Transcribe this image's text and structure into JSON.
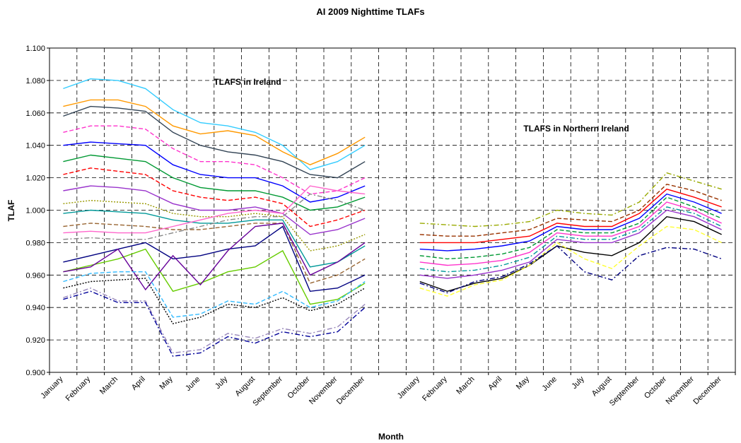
{
  "chart_data": {
    "type": "line",
    "title": "AI 2009 Nighttime TLAFs",
    "x_label": "Month",
    "y_label": "TLAF",
    "annotations": [
      "TLAFS in Ireland",
      "TLAFS in Northern Ireland"
    ],
    "categories": [
      "January",
      "February",
      "March",
      "April",
      "May",
      "June",
      "July",
      "August",
      "September",
      "October",
      "November",
      "December",
      null,
      "January",
      "February",
      "March",
      "April",
      "May",
      "June",
      "July",
      "August",
      "September",
      "October",
      "November",
      "December"
    ],
    "ylim": [
      0.9,
      1.1
    ],
    "yticks": [
      {
        "value": 0.9,
        "label": "0.900"
      },
      {
        "value": 0.92,
        "label": "0.920"
      },
      {
        "value": 0.94,
        "label": "0.940"
      },
      {
        "value": 0.96,
        "label": "0.960"
      },
      {
        "value": 0.98,
        "label": "0.980"
      },
      {
        "value": 1.0,
        "label": "1.000"
      },
      {
        "value": 1.02,
        "label": "1.020"
      },
      {
        "value": 1.04,
        "label": "1.040"
      },
      {
        "value": 1.06,
        "label": "1.060"
      },
      {
        "value": 1.08,
        "label": "1.080"
      },
      {
        "value": 1.1,
        "label": "1.100"
      }
    ],
    "grid": true,
    "series": [
      {
        "color": "#33ccff",
        "dash": "solid",
        "values": [
          1.075,
          1.081,
          1.08,
          1.075,
          1.062,
          1.054,
          1.052,
          1.048,
          1.04,
          1.025,
          1.03,
          1.04,
          null,
          null,
          null,
          null,
          null,
          null,
          null,
          null,
          null,
          null,
          null,
          null,
          null
        ]
      },
      {
        "color": "#ff9900",
        "dash": "solid",
        "values": [
          1.064,
          1.068,
          1.068,
          1.064,
          1.052,
          1.047,
          1.049,
          1.046,
          1.036,
          1.028,
          1.035,
          1.045,
          null,
          null,
          null,
          null,
          null,
          null,
          null,
          null,
          null,
          null,
          null,
          null,
          null
        ]
      },
      {
        "color": "#334455",
        "dash": "solid",
        "values": [
          1.058,
          1.064,
          1.063,
          1.061,
          1.048,
          1.04,
          1.036,
          1.034,
          1.03,
          1.022,
          1.02,
          1.03,
          null,
          null,
          null,
          null,
          null,
          null,
          null,
          null,
          null,
          null,
          null,
          null,
          null
        ]
      },
      {
        "color": "#ff33cc",
        "dash": "dash",
        "values": [
          1.048,
          1.052,
          1.052,
          1.05,
          1.038,
          1.03,
          1.03,
          1.028,
          1.02,
          1.01,
          1.012,
          1.02,
          null,
          null,
          null,
          null,
          null,
          null,
          null,
          null,
          null,
          null,
          null,
          null,
          null
        ]
      },
      {
        "color": "#0000ff",
        "dash": "solid",
        "values": [
          1.04,
          1.042,
          1.041,
          1.04,
          1.028,
          1.022,
          1.02,
          1.02,
          1.015,
          1.005,
          1.008,
          1.015,
          null,
          null,
          null,
          null,
          null,
          null,
          null,
          null,
          null,
          null,
          null,
          null,
          null
        ]
      },
      {
        "color": "#009933",
        "dash": "solid",
        "values": [
          1.03,
          1.034,
          1.032,
          1.03,
          1.02,
          1.014,
          1.012,
          1.012,
          1.008,
          1.0,
          1.002,
          1.008,
          null,
          null,
          null,
          null,
          null,
          null,
          null,
          null,
          null,
          null,
          null,
          null,
          null
        ]
      },
      {
        "color": "#ff0000",
        "dash": "dash",
        "values": [
          1.022,
          1.026,
          1.024,
          1.022,
          1.012,
          1.008,
          1.006,
          1.008,
          1.004,
          0.99,
          0.994,
          1.0,
          null,
          null,
          null,
          null,
          null,
          null,
          null,
          null,
          null,
          null,
          null,
          null,
          null
        ]
      },
      {
        "color": "#9933cc",
        "dash": "solid",
        "values": [
          1.012,
          1.015,
          1.014,
          1.012,
          1.004,
          1.0,
          1.0,
          1.002,
          0.998,
          0.985,
          0.988,
          0.995,
          null,
          null,
          null,
          null,
          null,
          null,
          null,
          null,
          null,
          null,
          null,
          null,
          null
        ]
      },
      {
        "color": "#999900",
        "dash": "dot",
        "values": [
          1.004,
          1.006,
          1.005,
          1.004,
          0.998,
          0.996,
          0.996,
          0.998,
          0.996,
          0.975,
          0.978,
          0.985,
          null,
          null,
          null,
          null,
          null,
          null,
          null,
          null,
          null,
          null,
          null,
          null,
          null
        ]
      },
      {
        "color": "#009999",
        "dash": "solid",
        "values": [
          0.998,
          1.0,
          0.999,
          0.998,
          0.994,
          0.992,
          0.992,
          0.994,
          0.994,
          0.965,
          0.968,
          0.978,
          null,
          null,
          null,
          null,
          null,
          null,
          null,
          null,
          null,
          null,
          null,
          null,
          null
        ]
      },
      {
        "color": "#996633",
        "dash": "dash",
        "values": [
          0.99,
          0.992,
          0.991,
          0.99,
          0.988,
          0.988,
          0.99,
          0.992,
          0.992,
          0.955,
          0.96,
          0.97,
          null,
          null,
          null,
          null,
          null,
          null,
          null,
          null,
          null,
          null,
          null,
          null,
          null
        ]
      },
      {
        "color": "#ff66cc",
        "dash": "solid",
        "values": [
          0.986,
          0.987,
          0.986,
          0.986,
          0.99,
          0.994,
          0.998,
          1.0,
          0.998,
          1.015,
          1.012,
          1.01,
          null,
          null,
          null,
          null,
          null,
          null,
          null,
          null,
          null,
          null,
          null,
          null,
          null
        ]
      },
      {
        "color": "#888888",
        "dash": "dashdot",
        "values": [
          0.982,
          0.983,
          0.982,
          0.982,
          0.986,
          0.99,
          0.994,
          0.996,
          0.996,
          1.01,
          1.006,
          1.0,
          null,
          null,
          null,
          null,
          null,
          null,
          null,
          null,
          null,
          null,
          null,
          null,
          null
        ]
      },
      {
        "color": "#000080",
        "dash": "solid",
        "values": [
          0.968,
          0.972,
          0.976,
          0.98,
          0.97,
          0.972,
          0.976,
          0.978,
          0.99,
          0.95,
          0.952,
          0.96,
          null,
          null,
          null,
          null,
          null,
          null,
          null,
          null,
          null,
          null,
          null,
          null,
          null
        ]
      },
      {
        "color": "#66cc00",
        "dash": "solid",
        "values": [
          0.962,
          0.966,
          0.97,
          0.976,
          0.95,
          0.955,
          0.962,
          0.965,
          0.975,
          0.942,
          0.945,
          0.955,
          null,
          null,
          null,
          null,
          null,
          null,
          null,
          null,
          null,
          null,
          null,
          null,
          null
        ]
      },
      {
        "color": "#660099",
        "dash": "solid",
        "values": [
          0.962,
          0.965,
          0.976,
          0.951,
          0.972,
          0.954,
          0.975,
          0.99,
          0.992,
          0.96,
          0.968,
          0.98,
          null,
          null,
          null,
          null,
          null,
          null,
          null,
          null,
          null,
          null,
          null,
          null,
          null
        ]
      },
      {
        "color": "#33bbff",
        "dash": "dash",
        "values": [
          0.956,
          0.961,
          0.962,
          0.962,
          0.934,
          0.936,
          0.944,
          0.942,
          0.95,
          0.94,
          0.944,
          0.956,
          null,
          null,
          null,
          null,
          null,
          null,
          null,
          null,
          null,
          null,
          null,
          null,
          null
        ]
      },
      {
        "color": "#000000",
        "dash": "dot",
        "values": [
          0.952,
          0.956,
          0.957,
          0.958,
          0.93,
          0.934,
          0.942,
          0.94,
          0.946,
          0.938,
          0.942,
          0.952,
          null,
          null,
          null,
          null,
          null,
          null,
          null,
          null,
          null,
          null,
          null,
          null,
          null
        ]
      },
      {
        "color": "#9988bb",
        "dash": "dashdot",
        "values": [
          0.946,
          0.952,
          0.944,
          0.944,
          0.912,
          0.914,
          0.924,
          0.921,
          0.927,
          0.924,
          0.928,
          0.942,
          null,
          null,
          null,
          null,
          null,
          null,
          null,
          null,
          null,
          null,
          null,
          null,
          null
        ]
      },
      {
        "color": "#000099",
        "dash": "dashdot",
        "values": [
          0.945,
          0.95,
          0.943,
          0.943,
          0.91,
          0.912,
          0.922,
          0.918,
          0.925,
          0.922,
          0.925,
          0.94,
          null,
          null,
          null,
          null,
          null,
          null,
          null,
          null,
          null,
          null,
          null,
          null,
          null
        ]
      },
      {
        "color": "#99aa00",
        "dash": "dashdot",
        "values": [
          null,
          null,
          null,
          null,
          null,
          null,
          null,
          null,
          null,
          null,
          null,
          null,
          null,
          0.992,
          0.991,
          0.99,
          0.991,
          0.993,
          1.0,
          0.998,
          0.997,
          1.005,
          1.023,
          1.018,
          1.013
        ]
      },
      {
        "color": "#993300",
        "dash": "dash",
        "values": [
          null,
          null,
          null,
          null,
          null,
          null,
          null,
          null,
          null,
          null,
          null,
          null,
          null,
          0.985,
          0.984,
          0.984,
          0.986,
          0.988,
          0.995,
          0.994,
          0.993,
          1.0,
          1.016,
          1.012,
          1.006
        ]
      },
      {
        "color": "#ff0000",
        "dash": "solid",
        "values": [
          null,
          null,
          null,
          null,
          null,
          null,
          null,
          null,
          null,
          null,
          null,
          null,
          null,
          0.98,
          0.98,
          0.98,
          0.982,
          0.984,
          0.992,
          0.99,
          0.99,
          0.998,
          1.013,
          1.008,
          1.002
        ]
      },
      {
        "color": "#0000ff",
        "dash": "solid",
        "values": [
          null,
          null,
          null,
          null,
          null,
          null,
          null,
          null,
          null,
          null,
          null,
          null,
          null,
          0.976,
          0.975,
          0.976,
          0.978,
          0.981,
          0.99,
          0.988,
          0.988,
          0.995,
          1.01,
          1.005,
          0.998
        ]
      },
      {
        "color": "#009933",
        "dash": "dash",
        "values": [
          null,
          null,
          null,
          null,
          null,
          null,
          null,
          null,
          null,
          null,
          null,
          null,
          null,
          0.972,
          0.97,
          0.971,
          0.973,
          0.977,
          0.988,
          0.986,
          0.986,
          0.992,
          1.008,
          1.002,
          0.995
        ]
      },
      {
        "color": "#ff33cc",
        "dash": "solid",
        "values": [
          null,
          null,
          null,
          null,
          null,
          null,
          null,
          null,
          null,
          null,
          null,
          null,
          null,
          0.968,
          0.966,
          0.967,
          0.969,
          0.974,
          0.986,
          0.984,
          0.984,
          0.99,
          1.005,
          1.0,
          0.992
        ]
      },
      {
        "color": "#009999",
        "dash": "dashdot",
        "values": [
          null,
          null,
          null,
          null,
          null,
          null,
          null,
          null,
          null,
          null,
          null,
          null,
          null,
          0.964,
          0.962,
          0.963,
          0.966,
          0.971,
          0.984,
          0.982,
          0.982,
          0.988,
          1.002,
          0.998,
          0.99
        ]
      },
      {
        "color": "#9933cc",
        "dash": "solid",
        "values": [
          null,
          null,
          null,
          null,
          null,
          null,
          null,
          null,
          null,
          null,
          null,
          null,
          null,
          0.96,
          0.958,
          0.96,
          0.963,
          0.968,
          0.982,
          0.98,
          0.98,
          0.986,
          1.0,
          0.996,
          0.988
        ]
      },
      {
        "color": "#000000",
        "dash": "solid",
        "values": [
          null,
          null,
          null,
          null,
          null,
          null,
          null,
          null,
          null,
          null,
          null,
          null,
          null,
          0.956,
          0.95,
          0.955,
          0.958,
          0.966,
          0.978,
          0.974,
          0.972,
          0.98,
          0.996,
          0.993,
          0.985
        ]
      },
      {
        "color": "#ffff33",
        "dash": "dash",
        "values": [
          null,
          null,
          null,
          null,
          null,
          null,
          null,
          null,
          null,
          null,
          null,
          null,
          null,
          0.952,
          0.947,
          0.954,
          0.957,
          0.966,
          0.98,
          0.97,
          0.964,
          0.978,
          0.99,
          0.988,
          0.98
        ]
      },
      {
        "color": "#000080",
        "dash": "dashdot",
        "values": [
          null,
          null,
          null,
          null,
          null,
          null,
          null,
          null,
          null,
          null,
          null,
          null,
          null,
          0.955,
          0.949,
          0.956,
          0.959,
          0.967,
          0.978,
          0.962,
          0.957,
          0.972,
          0.977,
          0.976,
          0.97
        ]
      }
    ]
  }
}
